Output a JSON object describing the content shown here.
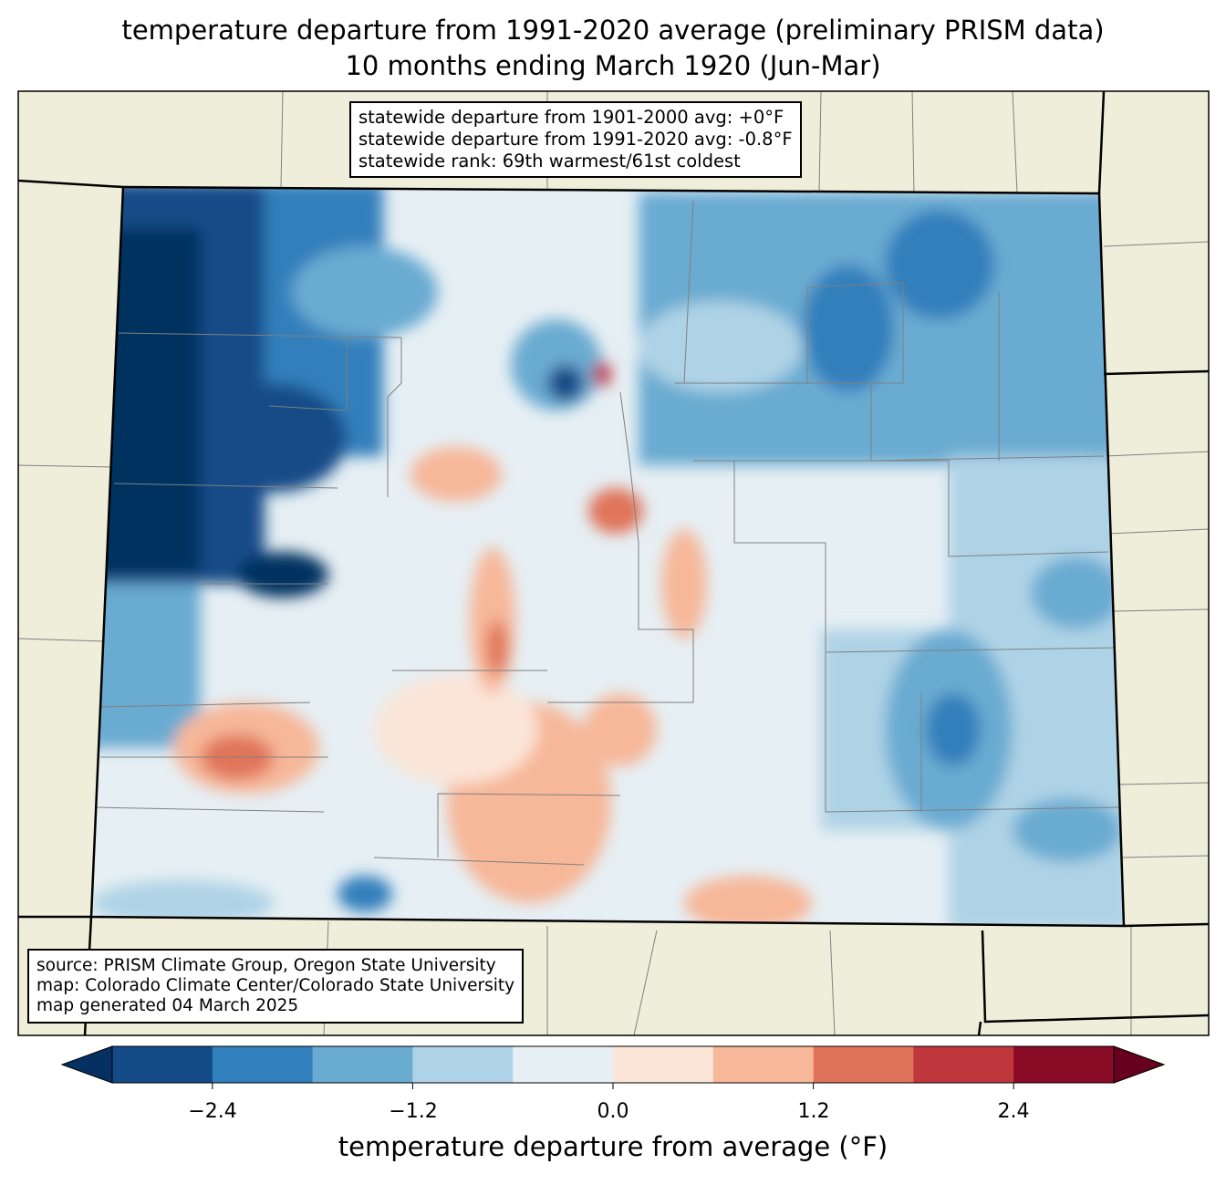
{
  "title": {
    "line1": "temperature departure from 1991-2020 average (preliminary PRISM data)",
    "line2": "10 months ending March 1920 (Jun-Mar)"
  },
  "stats_box": {
    "line1": "statewide departure from 1901-2000 avg: +0°F",
    "line2": "statewide departure from 1991-2020 avg: -0.8°F",
    "line3": "statewide rank: 69th warmest/61st coldest"
  },
  "credits_box": {
    "line1": "source: PRISM Climate Group, Oregon State University",
    "line2": "map: Colorado Climate Center/Colorado State University",
    "line3": "map generated 04 March 2025"
  },
  "colorbar": {
    "label": "temperature departure from average (°F)",
    "ticks": [
      "−2.4",
      "−1.2",
      "0.0",
      "1.2",
      "2.4"
    ],
    "tick_values": [
      -2.4,
      -1.2,
      0.0,
      1.2,
      2.4
    ],
    "range": [
      -3.0,
      3.0
    ],
    "step": 0.6,
    "colors": [
      "#134b87",
      "#317fbc",
      "#6aabd1",
      "#afd3e6",
      "#e6eff4",
      "#fbe5d8",
      "#f7b799",
      "#e0745a",
      "#c0363d",
      "#8a0b25"
    ],
    "extend_low": "#053061",
    "extend_high": "#67001f"
  },
  "colors": {
    "land": "#efeedb",
    "county_lines": "#808080"
  }
}
